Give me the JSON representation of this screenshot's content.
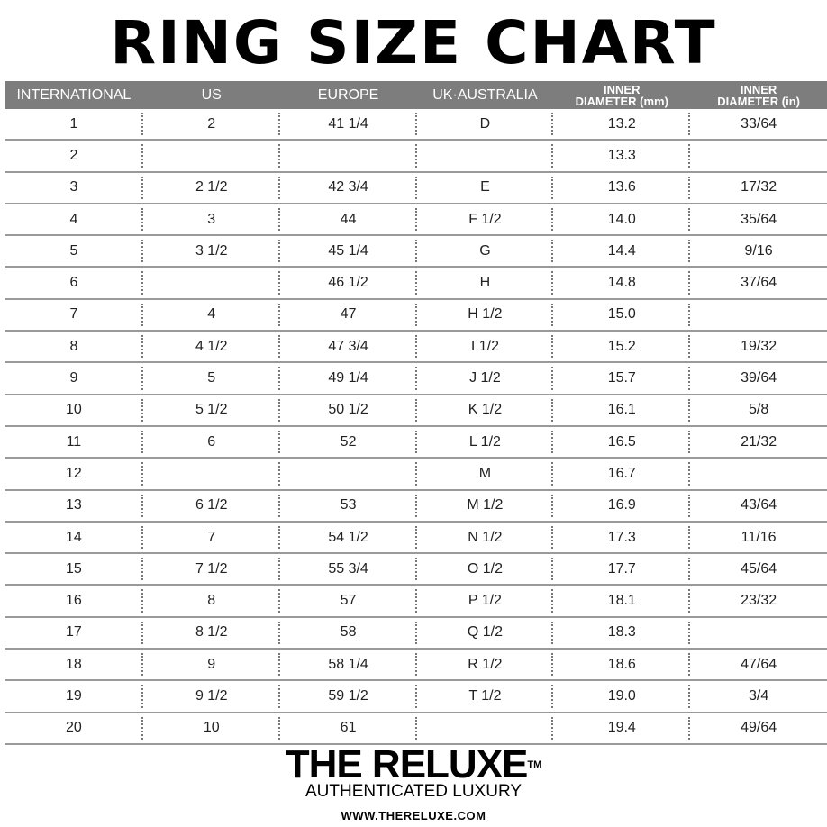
{
  "title": "RING SIZE CHART",
  "table": {
    "headers": [
      "INTERNATIONAL",
      "US",
      "EUROPE",
      "UK·AUSTRALIA",
      "INNER DIAMETER (mm)",
      "INNER DIAMETER (in)"
    ],
    "rows": [
      [
        "1",
        "2",
        "41 1/4",
        "D",
        "13.2",
        "33/64"
      ],
      [
        "2",
        "",
        "",
        "",
        "13.3",
        ""
      ],
      [
        "3",
        "2 1/2",
        "42 3/4",
        "E",
        "13.6",
        "17/32"
      ],
      [
        "4",
        "3",
        "44",
        "F 1/2",
        "14.0",
        "35/64"
      ],
      [
        "5",
        "3 1/2",
        "45 1/4",
        "G",
        "14.4",
        "9/16"
      ],
      [
        "6",
        "",
        "46 1/2",
        "H",
        "14.8",
        "37/64"
      ],
      [
        "7",
        "4",
        "47",
        "H 1/2",
        "15.0",
        ""
      ],
      [
        "8",
        "4 1/2",
        "47 3/4",
        "I 1/2",
        "15.2",
        "19/32"
      ],
      [
        "9",
        "5",
        "49 1/4",
        "J 1/2",
        "15.7",
        "39/64"
      ],
      [
        "10",
        "5 1/2",
        "50 1/2",
        "K 1/2",
        "16.1",
        "5/8"
      ],
      [
        "11",
        "6",
        "52",
        "L 1/2",
        "16.5",
        "21/32"
      ],
      [
        "12",
        "",
        "",
        "M",
        "16.7",
        ""
      ],
      [
        "13",
        "6 1/2",
        "53",
        "M 1/2",
        "16.9",
        "43/64"
      ],
      [
        "14",
        "7",
        "54 1/2",
        "N 1/2",
        "17.3",
        "11/16"
      ],
      [
        "15",
        "7 1/2",
        "55 3/4",
        "O 1/2",
        "17.7",
        "45/64"
      ],
      [
        "16",
        "8",
        "57",
        "P 1/2",
        "18.1",
        "23/32"
      ],
      [
        "17",
        "8 1/2",
        "58",
        "Q 1/2",
        "18.3",
        ""
      ],
      [
        "18",
        "9",
        "58 1/4",
        "R 1/2",
        "18.6",
        "47/64"
      ],
      [
        "19",
        "9 1/2",
        "59 1/2",
        "T 1/2",
        "19.0",
        "3/4"
      ],
      [
        "20",
        "10",
        "61",
        "",
        "19.4",
        "49/64"
      ]
    ]
  },
  "brand": {
    "logo": "THE RELUXE",
    "trademark": "TM",
    "tagline": "AUTHENTICATED LUXURY",
    "url": "WWW.THERELUXE.COM"
  },
  "colors": {
    "header_bg": "#7d7d7d",
    "header_text": "#ffffff",
    "row_divider": "#9a9a9a"
  }
}
